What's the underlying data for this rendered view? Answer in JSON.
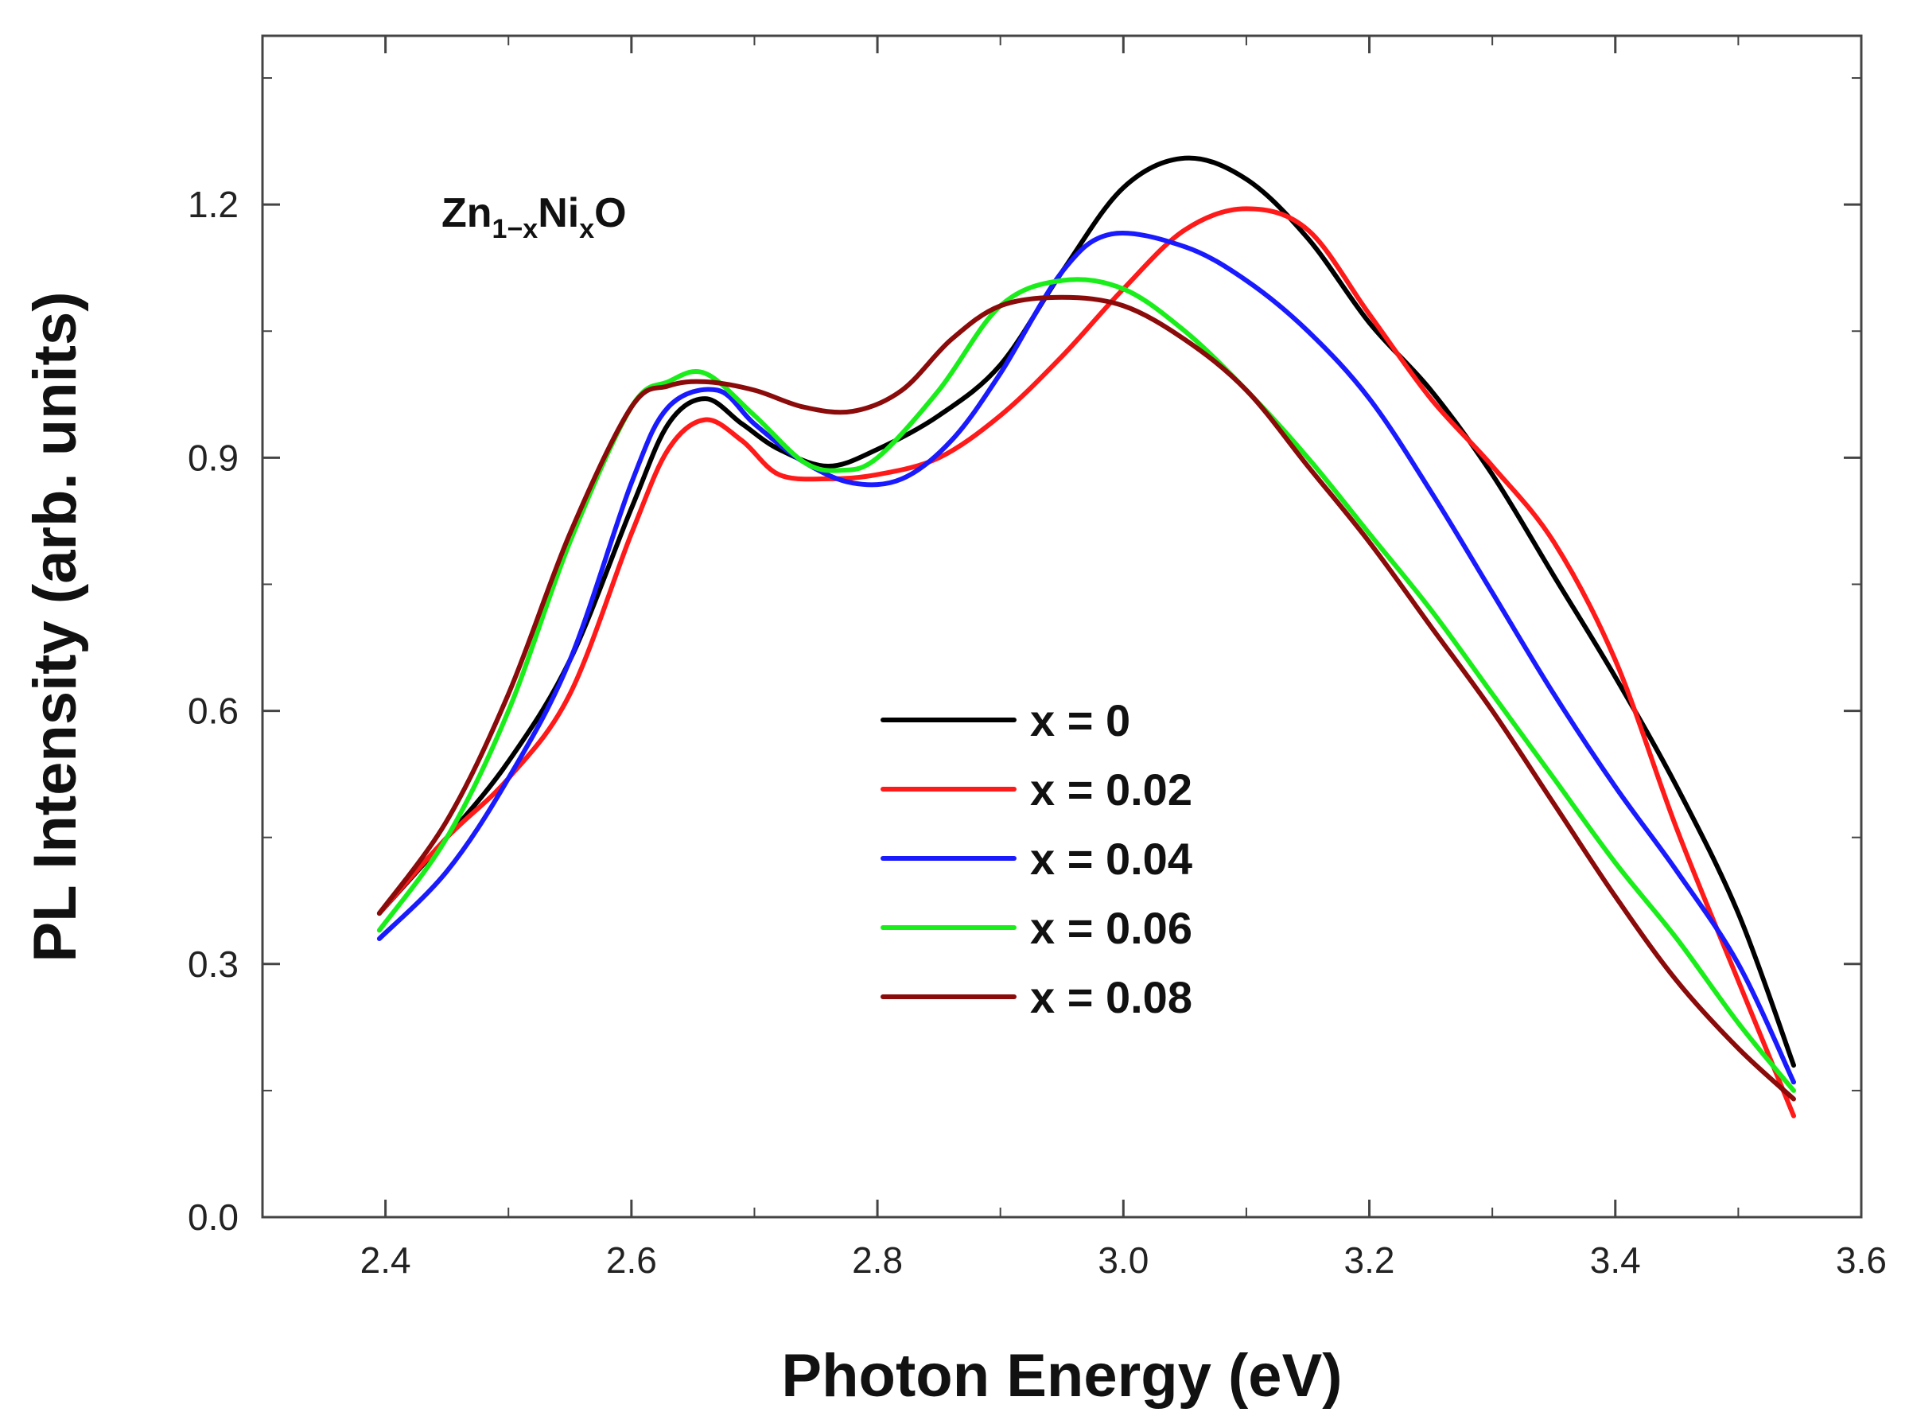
{
  "chart_data": {
    "type": "line",
    "title": "",
    "annotation": {
      "base1": "Zn",
      "sub1": "1−x",
      "base2": "Ni",
      "sub2": "x",
      "base3": "O"
    },
    "xlabel": "Photon Energy (eV)",
    "ylabel": "PL Intensity (arb. units)",
    "xlim": [
      2.3,
      3.6
    ],
    "ylim": [
      0.0,
      1.4
    ],
    "xticks": [
      2.4,
      2.6,
      2.8,
      3.0,
      3.2,
      3.4,
      3.6
    ],
    "xtick_labels": [
      "2.4",
      "2.6",
      "2.8",
      "3.0",
      "3.2",
      "3.4",
      "3.6"
    ],
    "yticks": [
      0.0,
      0.3,
      0.6,
      0.9,
      1.2
    ],
    "ytick_labels": [
      "0.0",
      "0.3",
      "0.6",
      "0.9",
      "1.2"
    ],
    "grid": false,
    "legend_position": "center",
    "series": [
      {
        "name": "x = 0",
        "color": "#000000",
        "points": [
          [
            2.395,
            0.36
          ],
          [
            2.45,
            0.45
          ],
          [
            2.5,
            0.54
          ],
          [
            2.55,
            0.66
          ],
          [
            2.6,
            0.84
          ],
          [
            2.63,
            0.94
          ],
          [
            2.66,
            0.97
          ],
          [
            2.69,
            0.94
          ],
          [
            2.72,
            0.91
          ],
          [
            2.76,
            0.89
          ],
          [
            2.8,
            0.91
          ],
          [
            2.85,
            0.95
          ],
          [
            2.9,
            1.01
          ],
          [
            2.95,
            1.12
          ],
          [
            3.0,
            1.22
          ],
          [
            3.05,
            1.255
          ],
          [
            3.1,
            1.23
          ],
          [
            3.15,
            1.16
          ],
          [
            3.2,
            1.06
          ],
          [
            3.25,
            0.98
          ],
          [
            3.3,
            0.88
          ],
          [
            3.35,
            0.76
          ],
          [
            3.4,
            0.64
          ],
          [
            3.45,
            0.51
          ],
          [
            3.5,
            0.36
          ],
          [
            3.545,
            0.18
          ]
        ]
      },
      {
        "name": "x = 0.02",
        "color": "#ff1a1a",
        "points": [
          [
            2.395,
            0.36
          ],
          [
            2.45,
            0.45
          ],
          [
            2.5,
            0.52
          ],
          [
            2.55,
            0.62
          ],
          [
            2.6,
            0.81
          ],
          [
            2.63,
            0.91
          ],
          [
            2.66,
            0.945
          ],
          [
            2.69,
            0.92
          ],
          [
            2.72,
            0.88
          ],
          [
            2.76,
            0.875
          ],
          [
            2.8,
            0.88
          ],
          [
            2.85,
            0.9
          ],
          [
            2.9,
            0.95
          ],
          [
            2.95,
            1.02
          ],
          [
            3.0,
            1.1
          ],
          [
            3.05,
            1.17
          ],
          [
            3.1,
            1.195
          ],
          [
            3.15,
            1.17
          ],
          [
            3.2,
            1.07
          ],
          [
            3.25,
            0.97
          ],
          [
            3.3,
            0.89
          ],
          [
            3.35,
            0.8
          ],
          [
            3.4,
            0.66
          ],
          [
            3.45,
            0.46
          ],
          [
            3.5,
            0.28
          ],
          [
            3.545,
            0.12
          ]
        ]
      },
      {
        "name": "x = 0.04",
        "color": "#1a1aff",
        "points": [
          [
            2.395,
            0.33
          ],
          [
            2.45,
            0.41
          ],
          [
            2.5,
            0.52
          ],
          [
            2.55,
            0.66
          ],
          [
            2.6,
            0.87
          ],
          [
            2.63,
            0.96
          ],
          [
            2.67,
            0.98
          ],
          [
            2.7,
            0.94
          ],
          [
            2.74,
            0.895
          ],
          [
            2.78,
            0.87
          ],
          [
            2.82,
            0.875
          ],
          [
            2.86,
            0.92
          ],
          [
            2.9,
            1.0
          ],
          [
            2.95,
            1.12
          ],
          [
            2.99,
            1.165
          ],
          [
            3.05,
            1.15
          ],
          [
            3.1,
            1.11
          ],
          [
            3.15,
            1.05
          ],
          [
            3.2,
            0.97
          ],
          [
            3.25,
            0.86
          ],
          [
            3.3,
            0.74
          ],
          [
            3.35,
            0.62
          ],
          [
            3.4,
            0.51
          ],
          [
            3.45,
            0.41
          ],
          [
            3.5,
            0.3
          ],
          [
            3.545,
            0.16
          ]
        ]
      },
      {
        "name": "x = 0.06",
        "color": "#1aee1a",
        "points": [
          [
            2.395,
            0.34
          ],
          [
            2.45,
            0.45
          ],
          [
            2.5,
            0.6
          ],
          [
            2.55,
            0.8
          ],
          [
            2.6,
            0.96
          ],
          [
            2.63,
            0.99
          ],
          [
            2.66,
            1.0
          ],
          [
            2.7,
            0.95
          ],
          [
            2.74,
            0.895
          ],
          [
            2.77,
            0.885
          ],
          [
            2.8,
            0.9
          ],
          [
            2.85,
            0.98
          ],
          [
            2.9,
            1.08
          ],
          [
            2.95,
            1.11
          ],
          [
            3.0,
            1.1
          ],
          [
            3.05,
            1.05
          ],
          [
            3.1,
            0.98
          ],
          [
            3.15,
            0.9
          ],
          [
            3.2,
            0.81
          ],
          [
            3.25,
            0.72
          ],
          [
            3.3,
            0.62
          ],
          [
            3.35,
            0.52
          ],
          [
            3.4,
            0.42
          ],
          [
            3.45,
            0.33
          ],
          [
            3.5,
            0.23
          ],
          [
            3.545,
            0.15
          ]
        ]
      },
      {
        "name": "x = 0.08",
        "color": "#8b0a0a",
        "points": [
          [
            2.395,
            0.36
          ],
          [
            2.45,
            0.47
          ],
          [
            2.5,
            0.62
          ],
          [
            2.55,
            0.81
          ],
          [
            2.6,
            0.96
          ],
          [
            2.63,
            0.985
          ],
          [
            2.66,
            0.99
          ],
          [
            2.7,
            0.98
          ],
          [
            2.74,
            0.96
          ],
          [
            2.78,
            0.955
          ],
          [
            2.82,
            0.98
          ],
          [
            2.86,
            1.04
          ],
          [
            2.9,
            1.08
          ],
          [
            2.95,
            1.09
          ],
          [
            3.0,
            1.08
          ],
          [
            3.05,
            1.04
          ],
          [
            3.1,
            0.98
          ],
          [
            3.15,
            0.89
          ],
          [
            3.2,
            0.8
          ],
          [
            3.25,
            0.7
          ],
          [
            3.3,
            0.6
          ],
          [
            3.35,
            0.49
          ],
          [
            3.4,
            0.38
          ],
          [
            3.45,
            0.28
          ],
          [
            3.5,
            0.2
          ],
          [
            3.545,
            0.14
          ]
        ]
      }
    ]
  }
}
